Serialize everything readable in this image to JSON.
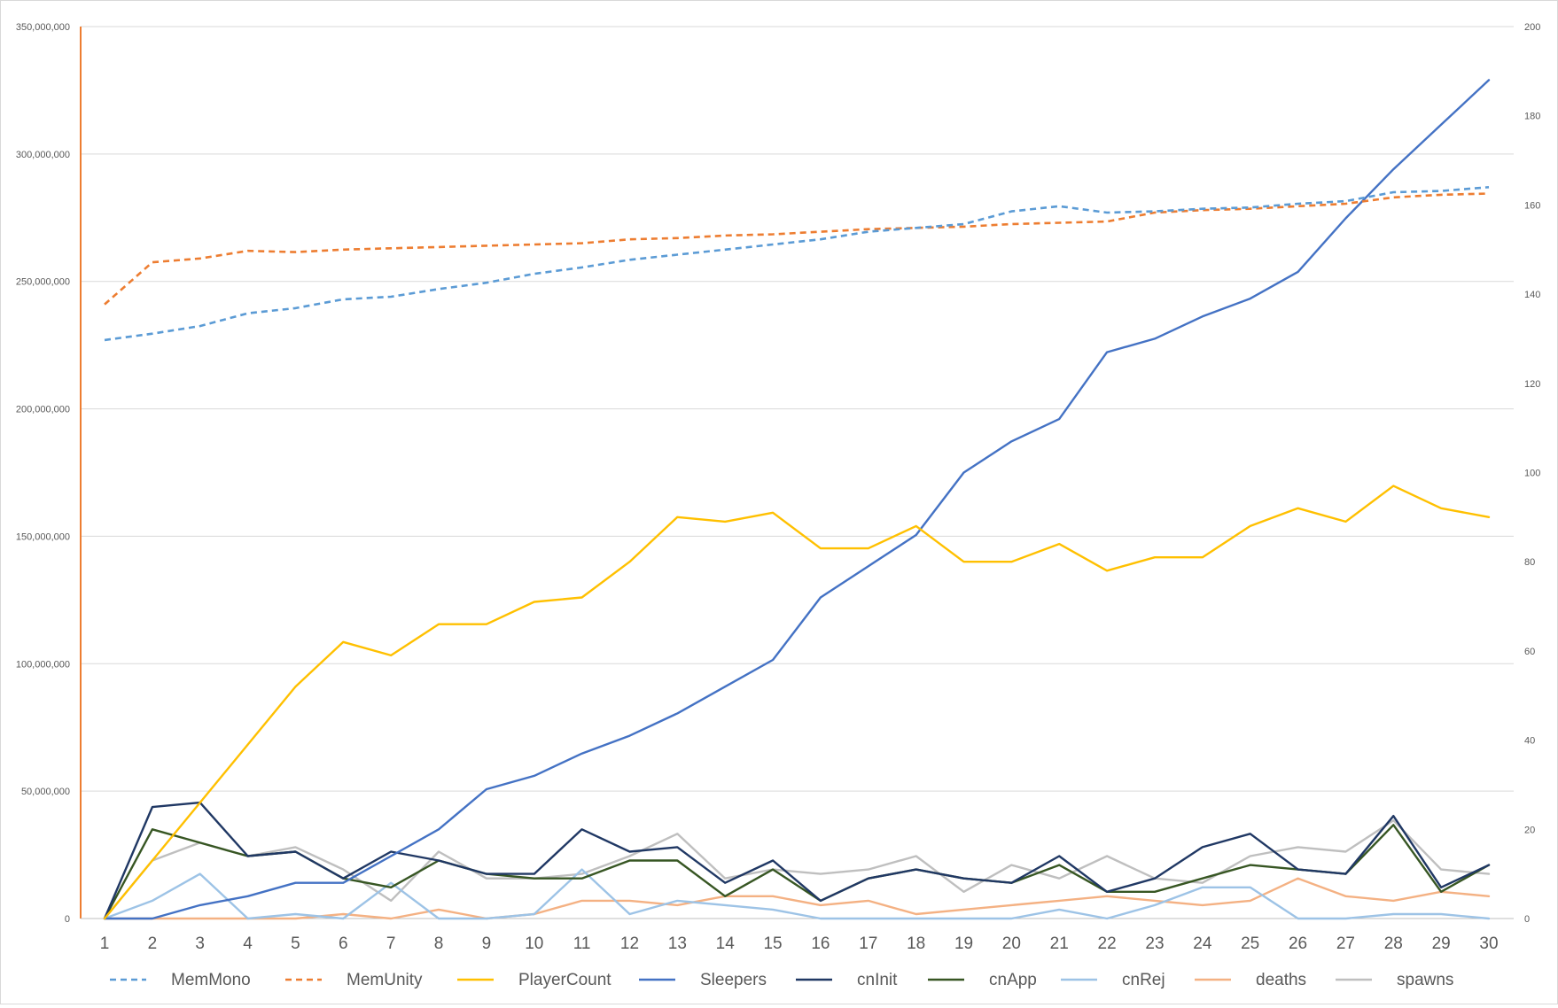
{
  "chart_data": {
    "type": "line",
    "title": "",
    "xlabel": "",
    "ylabel": "",
    "x": [
      1,
      2,
      3,
      4,
      5,
      6,
      7,
      8,
      9,
      10,
      11,
      12,
      13,
      14,
      15,
      16,
      17,
      18,
      19,
      20,
      21,
      22,
      23,
      24,
      25,
      26,
      27,
      28,
      29,
      30
    ],
    "y_left": {
      "ylim": [
        0,
        350000000
      ],
      "ticks": [
        "0",
        "50,000,000",
        "100,000,000",
        "150,000,000",
        "200,000,000",
        "250,000,000",
        "300,000,000",
        "350,000,000"
      ],
      "tick_values": [
        0,
        50000000,
        100000000,
        150000000,
        200000000,
        250000000,
        300000000,
        350000000
      ]
    },
    "y_right": {
      "ylim": [
        0,
        200
      ],
      "ticks": [
        "0",
        "20",
        "40",
        "60",
        "80",
        "100",
        "120",
        "140",
        "160",
        "180",
        "200"
      ],
      "tick_values": [
        0,
        20,
        40,
        60,
        80,
        100,
        120,
        140,
        160,
        180,
        200
      ]
    },
    "grid": true,
    "legend_position": "bottom",
    "series": [
      {
        "name": "MemMono",
        "axis": "left",
        "color": "#5B9BD5",
        "dashed": true,
        "values": [
          227000000,
          229500000,
          232500000,
          237500000,
          239500000,
          243000000,
          244000000,
          247000000,
          249500000,
          253000000,
          255500000,
          258500000,
          260500000,
          262500000,
          264500000,
          266500000,
          269500000,
          271000000,
          272500000,
          277500000,
          279500000,
          277000000,
          277500000,
          278500000,
          279000000,
          280500000,
          281500000,
          285000000,
          285500000,
          287000000
        ]
      },
      {
        "name": "MemUnity",
        "axis": "left",
        "color": "#ED7D31",
        "dashed": true,
        "values": [
          241000000,
          257500000,
          259000000,
          262000000,
          261500000,
          262500000,
          263000000,
          263500000,
          264000000,
          264500000,
          265000000,
          266500000,
          267000000,
          268000000,
          268500000,
          269500000,
          270500000,
          271000000,
          271500000,
          272500000,
          273000000,
          273500000,
          277000000,
          278000000,
          278500000,
          279500000,
          280500000,
          283000000,
          284000000,
          284500000
        ]
      },
      {
        "name": "PlayerCount",
        "axis": "right",
        "color": "#FFC000",
        "dashed": false,
        "values": [
          0,
          13,
          26,
          39,
          52,
          62,
          59,
          66,
          66,
          71,
          72,
          80,
          90,
          89,
          91,
          83,
          83,
          88,
          80,
          80,
          84,
          78,
          81,
          81,
          88,
          92,
          89,
          97,
          92,
          90
        ]
      },
      {
        "name": "Sleepers",
        "axis": "right",
        "color": "#4472C4",
        "dashed": false,
        "values": [
          0,
          0,
          3,
          5,
          8,
          8,
          14,
          20,
          29,
          32,
          37,
          41,
          46,
          52,
          58,
          72,
          79,
          86,
          100,
          107,
          112,
          127,
          130,
          135,
          139,
          145,
          157,
          168,
          178,
          188
        ]
      },
      {
        "name": "cnInit",
        "axis": "right",
        "color": "#203864",
        "dashed": false,
        "values": [
          0,
          25,
          26,
          14,
          15,
          9,
          15,
          13,
          10,
          10,
          20,
          15,
          16,
          8,
          13,
          4,
          9,
          11,
          9,
          8,
          14,
          6,
          9,
          16,
          19,
          11,
          10,
          23,
          7,
          12
        ]
      },
      {
        "name": "cnApp",
        "axis": "right",
        "color": "#375623",
        "dashed": false,
        "values": [
          0,
          20,
          17,
          14,
          15,
          9,
          7,
          13,
          10,
          9,
          9,
          13,
          13,
          5,
          11,
          4,
          9,
          11,
          9,
          8,
          12,
          6,
          6,
          9,
          12,
          11,
          10,
          21,
          6,
          12
        ]
      },
      {
        "name": "cnRej",
        "axis": "right",
        "color": "#9DC3E6",
        "dashed": false,
        "values": [
          0,
          4,
          10,
          0,
          1,
          0,
          8,
          0,
          0,
          1,
          11,
          1,
          4,
          3,
          2,
          0,
          0,
          0,
          0,
          0,
          2,
          0,
          3,
          7,
          7,
          0,
          0,
          1,
          1,
          0
        ]
      },
      {
        "name": "deaths",
        "axis": "right",
        "color": "#F4B183",
        "dashed": false,
        "values": [
          0,
          0,
          0,
          0,
          0,
          1,
          0,
          2,
          0,
          1,
          4,
          4,
          3,
          5,
          5,
          3,
          4,
          1,
          2,
          3,
          4,
          5,
          4,
          3,
          4,
          9,
          5,
          4,
          6,
          5
        ]
      },
      {
        "name": "spawns",
        "axis": "right",
        "color": "#BFBFBF",
        "dashed": false,
        "values": [
          0,
          13,
          17,
          14,
          16,
          11,
          4,
          15,
          9,
          9,
          10,
          14,
          19,
          9,
          11,
          10,
          11,
          14,
          6,
          12,
          9,
          14,
          9,
          8,
          14,
          16,
          15,
          22,
          11,
          10
        ]
      }
    ]
  }
}
